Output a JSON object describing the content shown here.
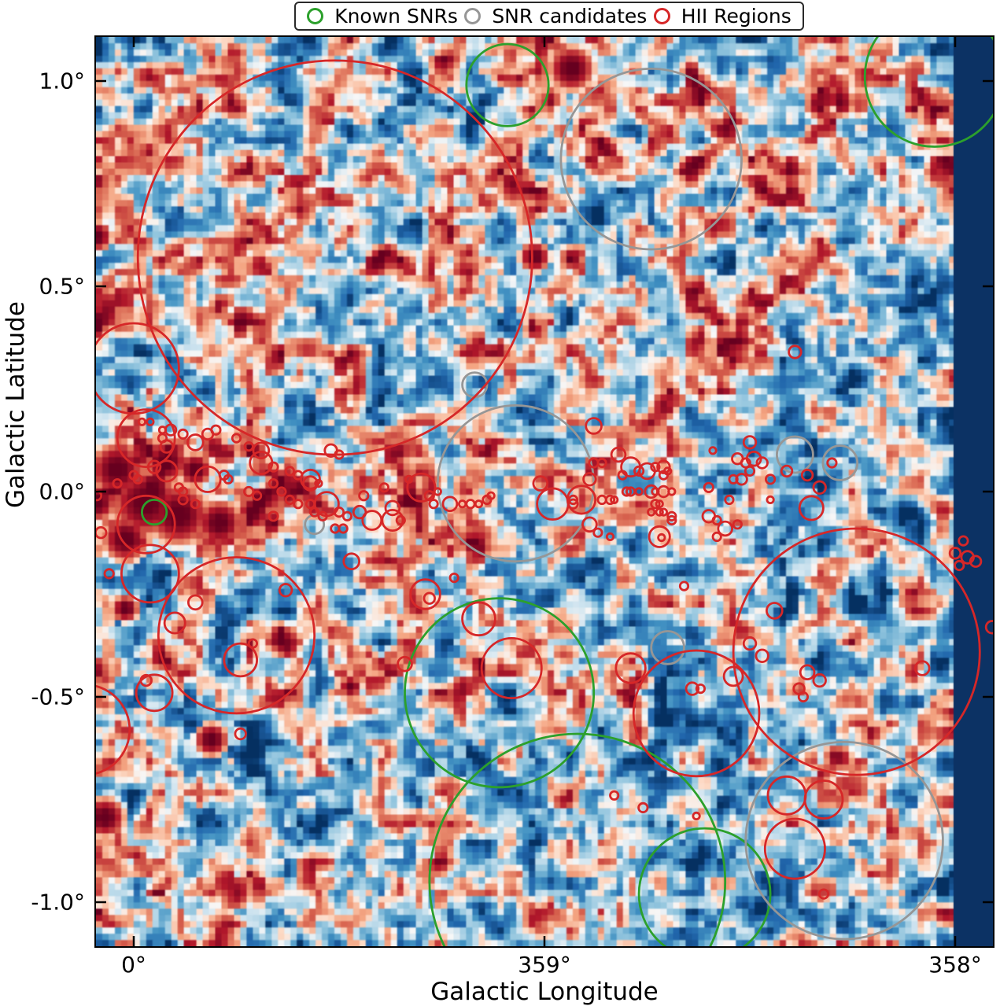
{
  "legend": {
    "items": [
      {
        "label": "Known SNRs",
        "color": "#2ca02c"
      },
      {
        "label": "SNR candidates",
        "color": "#969696"
      },
      {
        "label": "HII Regions",
        "color": "#d62728"
      }
    ]
  },
  "axes": {
    "xlabel": "Galactic Longitude",
    "ylabel": "Galactic Latitude",
    "x_ticks": [
      {
        "label": "0°",
        "l": 0
      },
      {
        "label": "359°",
        "l": -1
      },
      {
        "label": "358°",
        "l": -2
      }
    ],
    "y_ticks": [
      {
        "label": "1.0°",
        "b": 1.0
      },
      {
        "label": "0.5°",
        "b": 0.5
      },
      {
        "label": "0.0°",
        "b": 0.0
      },
      {
        "label": "-0.5°",
        "b": -0.5
      },
      {
        "label": "-1.0°",
        "b": -1.0
      }
    ]
  },
  "chart_data": {
    "type": "heatmap",
    "title": "",
    "xlabel": "Galactic Longitude",
    "ylabel": "Galactic Latitude",
    "x_range_deg": [
      0.09,
      -2.09
    ],
    "y_range_deg": [
      1.11,
      -1.11
    ],
    "colormap": "RdBu_r (dark blue = low, white = mid, dark red = high)",
    "palette": {
      "dark_blue": "#053061",
      "blue": "#2166ac",
      "mid_blue": "#4393c3",
      "light_blue": "#92c5de",
      "pale_blue": "#d1e5f0",
      "white": "#f7f7f7",
      "pale_red": "#fddbc7",
      "light_red": "#f4a582",
      "mid_red": "#d6604d",
      "red": "#b2182b",
      "dark_red": "#67001f"
    },
    "no_data_band": {
      "from_l": -1.996,
      "to_l": -2.092,
      "color": "#0c3264"
    },
    "hot_spots": [
      [
        0.04,
        0.05,
        0.067
      ],
      [
        -0.03,
        -0.03,
        0.086
      ],
      [
        -0.11,
        -0.06,
        0.077
      ],
      [
        -0.21,
        -0.08,
        0.057
      ],
      [
        0.02,
        -0.12,
        0.057
      ],
      [
        0.09,
        -0.03,
        0.048
      ],
      [
        -0.08,
        0.07,
        0.054
      ],
      [
        -0.15,
        0.05,
        0.042
      ],
      [
        -0.29,
        -0.05,
        0.034
      ],
      [
        -0.34,
        -0.08,
        0.027
      ],
      [
        -1.07,
        1.03,
        0.057
      ],
      [
        -0.98,
        0.57,
        0.038
      ],
      [
        -0.19,
        -0.61,
        0.042
      ],
      [
        0.07,
        -0.8,
        0.05
      ],
      [
        0.09,
        0.62,
        0.038
      ],
      [
        -0.53,
        -0.48,
        0.027
      ],
      [
        0.02,
        -0.29,
        0.034
      ]
    ],
    "overlays": {
      "known_snrs": [
        [
          -0.91,
          0.99,
          0.1
        ],
        [
          -1.95,
          1.01,
          0.17
        ],
        [
          -0.05,
          -0.05,
          0.03
        ],
        [
          -0.89,
          -0.49,
          0.23
        ],
        [
          -1.08,
          -0.95,
          0.36
        ],
        [
          -1.39,
          -0.98,
          0.16
        ]
      ],
      "snr_candidates": [
        [
          -1.26,
          0.81,
          0.22
        ],
        [
          -0.83,
          0.26,
          0.03
        ],
        [
          -0.93,
          0.02,
          0.19
        ],
        [
          -1.61,
          0.09,
          0.044
        ],
        [
          -1.72,
          0.07,
          0.042
        ],
        [
          -1.3,
          -0.38,
          0.04
        ],
        [
          -1.73,
          -0.85,
          0.24
        ],
        [
          -0.44,
          -0.08,
          0.023
        ]
      ],
      "hii_regions": [
        [
          -0.49,
          0.57,
          0.48
        ],
        [
          0.0,
          0.3,
          0.11
        ],
        [
          -0.03,
          0.13,
          0.07
        ],
        [
          -0.03,
          -0.08,
          0.07
        ],
        [
          -0.04,
          -0.2,
          0.07
        ],
        [
          0.12,
          -0.58,
          0.11
        ],
        [
          -0.25,
          -0.35,
          0.19
        ],
        [
          -0.1,
          -0.32,
          0.025
        ],
        [
          -0.15,
          -0.27,
          0.017
        ],
        [
          -0.37,
          -0.24,
          0.015
        ],
        [
          -0.26,
          -0.41,
          0.04
        ],
        [
          -0.29,
          -0.37,
          0.01
        ],
        [
          -0.26,
          -0.59,
          0.013
        ],
        [
          -0.05,
          -0.49,
          0.044
        ],
        [
          -0.03,
          -0.46,
          0.013
        ],
        [
          -0.92,
          -0.43,
          0.073
        ],
        [
          -0.84,
          -0.31,
          0.04
        ],
        [
          -0.71,
          -0.25,
          0.036
        ],
        [
          -0.72,
          -0.26,
          0.013
        ],
        [
          -0.78,
          -0.21,
          0.01
        ],
        [
          -0.66,
          -0.42,
          0.017
        ],
        [
          -1.21,
          -0.43,
          0.036
        ],
        [
          -1.37,
          -0.54,
          0.153
        ],
        [
          -1.76,
          -0.39,
          0.3
        ],
        [
          -1.65,
          -0.04,
          0.029
        ],
        [
          -1.59,
          -0.74,
          0.046
        ],
        [
          -1.68,
          -0.75,
          0.046
        ],
        [
          -1.61,
          -0.87,
          0.073
        ],
        [
          -1.46,
          -0.45,
          0.023
        ],
        [
          -1.56,
          -0.29,
          0.019
        ],
        [
          -1.5,
          -0.37,
          0.015
        ],
        [
          -1.53,
          -0.4,
          0.015
        ],
        [
          -1.64,
          -0.44,
          0.017
        ],
        [
          -1.67,
          -0.46,
          0.015
        ],
        [
          -1.62,
          -0.48,
          0.013
        ],
        [
          -1.63,
          -0.5,
          0.011
        ],
        [
          -1.36,
          -0.48,
          0.015
        ],
        [
          -1.38,
          -0.48,
          0.01
        ],
        [
          -1.92,
          -0.43,
          0.017
        ],
        [
          -2.02,
          -0.12,
          0.011
        ],
        [
          -2.0,
          -0.15,
          0.013
        ],
        [
          -2.03,
          -0.16,
          0.015
        ],
        [
          -2.05,
          -0.17,
          0.013
        ],
        [
          -2.01,
          -0.18,
          0.011
        ],
        [
          -2.09,
          -0.33,
          0.015
        ],
        [
          -1.68,
          -0.98,
          0.011
        ],
        [
          -1.17,
          -0.74,
          0.01
        ],
        [
          -1.24,
          -0.77,
          0.011
        ],
        [
          -1.37,
          -0.79,
          0.008
        ],
        [
          -1.34,
          -0.23,
          0.01
        ],
        [
          -1.61,
          0.34,
          0.015
        ],
        [
          -0.31,
          0.07,
          0.027
        ],
        [
          -0.47,
          -0.03,
          0.029
        ],
        [
          -0.18,
          0.03,
          0.031
        ],
        [
          -0.08,
          0.05,
          0.025
        ],
        [
          -0.08,
          0.11,
          0.015
        ],
        [
          -0.07,
          0.13,
          0.01
        ],
        [
          -0.07,
          0.15,
          0.008
        ],
        [
          -0.02,
          0.17,
          0.008
        ],
        [
          -0.04,
          0.17,
          0.008
        ],
        [
          -0.05,
          0.06,
          0.015
        ],
        [
          0.0,
          0.04,
          0.01
        ],
        [
          -0.01,
          0.03,
          0.01
        ],
        [
          0.04,
          0.02,
          0.01
        ],
        [
          0.08,
          -0.1,
          0.013
        ],
        [
          0.06,
          -0.2,
          0.011
        ],
        [
          0.09,
          -0.01,
          0.011
        ],
        [
          -0.09,
          0.15,
          0.013
        ],
        [
          -0.12,
          0.14,
          0.011
        ],
        [
          -0.15,
          0.12,
          0.019
        ],
        [
          -0.18,
          0.14,
          0.013
        ],
        [
          -0.2,
          0.15,
          0.011
        ],
        [
          -0.25,
          0.13,
          0.01
        ],
        [
          -0.28,
          0.11,
          0.01
        ],
        [
          -0.31,
          0.1,
          0.019
        ],
        [
          -0.34,
          0.06,
          0.011
        ],
        [
          -0.38,
          0.05,
          0.01
        ],
        [
          -0.4,
          0.04,
          0.01
        ],
        [
          -0.43,
          0.03,
          0.023
        ],
        [
          -0.45,
          0.02,
          0.008
        ],
        [
          -0.48,
          0.1,
          0.015
        ],
        [
          -0.5,
          0.09,
          0.01
        ],
        [
          -0.11,
          0.01,
          0.01
        ],
        [
          -0.12,
          0.0,
          0.01
        ],
        [
          -0.12,
          -0.02,
          0.011
        ],
        [
          -0.15,
          -0.03,
          0.01
        ],
        [
          -0.22,
          0.04,
          0.011
        ],
        [
          -0.23,
          0.03,
          0.01
        ],
        [
          -0.28,
          0.0,
          0.011
        ],
        [
          -0.3,
          -0.01,
          0.01
        ],
        [
          -0.34,
          0.02,
          0.01
        ],
        [
          -0.36,
          0.0,
          0.01
        ],
        [
          -0.38,
          -0.02,
          0.01
        ],
        [
          -0.4,
          -0.03,
          0.01
        ],
        [
          -0.43,
          -0.03,
          0.01
        ],
        [
          -0.44,
          -0.05,
          0.01
        ],
        [
          -0.46,
          -0.06,
          0.01
        ],
        [
          -0.5,
          -0.05,
          0.011
        ],
        [
          -0.52,
          -0.06,
          0.01
        ],
        [
          -0.49,
          -0.09,
          0.01
        ],
        [
          -0.51,
          -0.09,
          0.01
        ],
        [
          -0.43,
          0.02,
          0.017
        ],
        [
          -0.34,
          -0.06,
          0.011
        ],
        [
          -0.58,
          -0.07,
          0.023
        ],
        [
          -0.63,
          -0.07,
          0.025
        ],
        [
          -0.7,
          0.01,
          0.034
        ],
        [
          -0.63,
          -0.04,
          0.017
        ],
        [
          -0.55,
          -0.05,
          0.015
        ],
        [
          -0.53,
          -0.17,
          0.019
        ],
        [
          -0.56,
          -0.01,
          0.011
        ],
        [
          -0.61,
          0.01,
          0.01
        ],
        [
          -0.65,
          -0.07,
          0.01
        ],
        [
          -0.67,
          0.03,
          0.008
        ],
        [
          -0.72,
          -0.01,
          0.011
        ],
        [
          -0.74,
          0.0,
          0.008
        ],
        [
          -0.73,
          -0.03,
          0.01
        ],
        [
          -0.77,
          -0.03,
          0.017
        ],
        [
          -0.8,
          -0.03,
          0.008
        ],
        [
          -0.82,
          -0.03,
          0.01
        ],
        [
          -0.84,
          -0.03,
          0.008
        ],
        [
          -0.86,
          -0.02,
          0.01
        ],
        [
          -0.87,
          -0.01,
          0.008
        ],
        [
          -0.99,
          0.02,
          0.017
        ],
        [
          -1.02,
          -0.03,
          0.038
        ],
        [
          -1.09,
          -0.02,
          0.034
        ],
        [
          -1.07,
          -0.03,
          0.011
        ],
        [
          -1.07,
          -0.02,
          0.01
        ],
        [
          -1.11,
          0.03,
          0.015
        ],
        [
          -1.12,
          0.07,
          0.011
        ],
        [
          -1.14,
          0.07,
          0.01
        ],
        [
          -1.12,
          0.16,
          0.019
        ],
        [
          -1.18,
          0.09,
          0.017
        ],
        [
          -1.21,
          0.06,
          0.023
        ],
        [
          -1.23,
          0.05,
          0.011
        ],
        [
          -1.25,
          0.05,
          0.019
        ],
        [
          -1.27,
          0.06,
          0.01
        ],
        [
          -1.29,
          0.06,
          0.015
        ],
        [
          -1.29,
          0.04,
          0.01
        ],
        [
          -1.3,
          0.05,
          0.008
        ],
        [
          -1.19,
          0.04,
          0.01
        ],
        [
          -1.2,
          0.0,
          0.01
        ],
        [
          -1.21,
          0.0,
          0.01
        ],
        [
          -1.23,
          0.0,
          0.008
        ],
        [
          -1.26,
          0.0,
          0.015
        ],
        [
          -1.27,
          0.0,
          0.008
        ],
        [
          -1.29,
          0.0,
          0.013
        ],
        [
          -1.31,
          0.0,
          0.008
        ],
        [
          -1.27,
          -0.03,
          0.01
        ],
        [
          -1.28,
          -0.03,
          0.008
        ],
        [
          -1.26,
          -0.05,
          0.008
        ],
        [
          -1.28,
          -0.05,
          0.008
        ],
        [
          -1.29,
          -0.05,
          0.008
        ],
        [
          -1.31,
          -0.06,
          0.01
        ],
        [
          -1.16,
          -0.02,
          0.01
        ],
        [
          -1.17,
          -0.02,
          0.008
        ],
        [
          -1.14,
          -0.02,
          0.01
        ],
        [
          -1.11,
          -0.08,
          0.017
        ],
        [
          -1.13,
          -0.1,
          0.01
        ],
        [
          -1.16,
          -0.11,
          0.008
        ],
        [
          -1.28,
          -0.11,
          0.025
        ],
        [
          -1.285,
          -0.112,
          0.008
        ],
        [
          -1.31,
          -0.07,
          0.01
        ],
        [
          -1.5,
          0.12,
          0.015
        ],
        [
          -1.41,
          0.1,
          0.008
        ],
        [
          -1.47,
          0.08,
          0.013
        ],
        [
          -1.49,
          0.07,
          0.011
        ],
        [
          -1.51,
          0.08,
          0.017
        ],
        [
          -1.53,
          0.07,
          0.013
        ],
        [
          -1.5,
          0.05,
          0.011
        ],
        [
          -1.48,
          0.03,
          0.013
        ],
        [
          -1.46,
          0.03,
          0.01
        ],
        [
          -1.55,
          0.03,
          0.011
        ],
        [
          -1.4,
          0.01,
          0.011
        ],
        [
          -1.45,
          -0.02,
          0.01
        ],
        [
          -1.4,
          -0.06,
          0.015
        ],
        [
          -1.42,
          -0.07,
          0.01
        ],
        [
          -1.44,
          -0.09,
          0.017
        ],
        [
          -1.47,
          -0.08,
          0.01
        ],
        [
          -1.42,
          -0.11,
          0.01
        ],
        [
          -1.55,
          -0.02,
          0.008
        ],
        [
          -1.59,
          0.05,
          0.013
        ],
        [
          -1.64,
          0.04,
          0.013
        ],
        [
          -1.67,
          0.01,
          0.015
        ],
        [
          -1.7,
          0.07,
          0.011
        ]
      ]
    }
  }
}
